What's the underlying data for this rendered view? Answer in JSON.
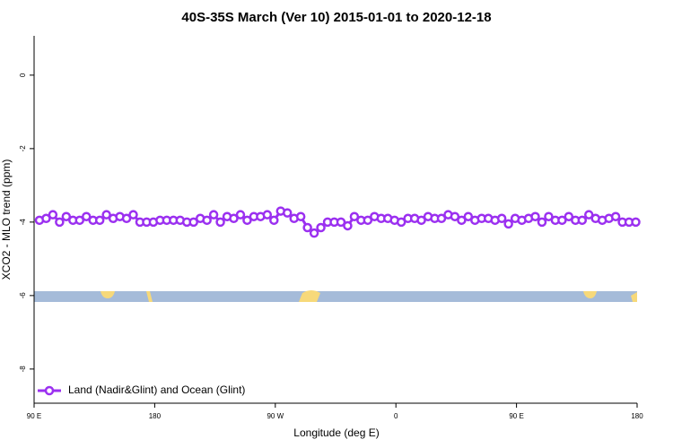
{
  "chart_data": {
    "type": "line",
    "title": "40S-35S March (Ver 10)   2015-01-01 to 2020-12-18",
    "x_label": "Longitude (deg E)",
    "y_label": "XCO2 - MLO trend (ppm)",
    "x": [
      94,
      99,
      104,
      109,
      114,
      119,
      124,
      129,
      134,
      139,
      144,
      149,
      154,
      159,
      164,
      169,
      174,
      179,
      184,
      189,
      194,
      199,
      204,
      209,
      214,
      219,
      224,
      229,
      234,
      239,
      244,
      249,
      254,
      259,
      264,
      269,
      274,
      279,
      284,
      289,
      294,
      299,
      304,
      309,
      314,
      319,
      324,
      329,
      334,
      339,
      344,
      349,
      354,
      359,
      364,
      369,
      374,
      379,
      384,
      389,
      394,
      399,
      404,
      409,
      414,
      419,
      424,
      429,
      434,
      439,
      444,
      449,
      454,
      459,
      464,
      469,
      474,
      479,
      484,
      489,
      494,
      499,
      504,
      509,
      514,
      519,
      524,
      529,
      534,
      539
    ],
    "series": [
      {
        "name": "Land (Nadir&Glint) and Ocean (Glint)",
        "color": "#9b30f0",
        "values": [
          -3.95,
          -3.9,
          -3.8,
          -4,
          -3.85,
          -3.95,
          -3.95,
          -3.85,
          -3.95,
          -3.95,
          -3.8,
          -3.9,
          -3.85,
          -3.9,
          -3.8,
          -4,
          -4,
          -4,
          -3.95,
          -3.95,
          -3.95,
          -3.95,
          -4,
          -4,
          -3.9,
          -3.95,
          -3.8,
          -4,
          -3.85,
          -3.9,
          -3.8,
          -3.95,
          -3.85,
          -3.85,
          -3.8,
          -3.95,
          -3.7,
          -3.75,
          -3.9,
          -3.85,
          -4.15,
          -4.3,
          -4.15,
          -4,
          -4,
          -4,
          -4.1,
          -3.85,
          -3.95,
          -3.95,
          -3.85,
          -3.9,
          -3.9,
          -3.95,
          -4,
          -3.9,
          -3.9,
          -3.95,
          -3.85,
          -3.9,
          -3.9,
          -3.8,
          -3.85,
          -3.95,
          -3.85,
          -3.95,
          -3.9,
          -3.9,
          -3.95,
          -3.9,
          -4.05,
          -3.9,
          -3.95,
          -3.9,
          -3.85,
          -4,
          -3.85,
          -3.95,
          -3.95,
          -3.85,
          -3.95,
          -3.95,
          -3.8,
          -3.9,
          -3.95,
          -3.9,
          -3.85,
          -4,
          -4,
          -4
        ]
      }
    ],
    "xlim": [
      90,
      540
    ],
    "ylim": [
      -8.93,
      1.07
    ],
    "xticks": [
      {
        "value": 90,
        "label": "90 E"
      },
      {
        "value": 180,
        "label": "180"
      },
      {
        "value": 270,
        "label": "90 W"
      },
      {
        "value": 360,
        "label": "0"
      },
      {
        "value": 450,
        "label": "90 E"
      },
      {
        "value": 540,
        "label": "180"
      }
    ],
    "yticks": [
      0,
      -2,
      -4,
      -6,
      -8
    ],
    "legend": "lower left"
  }
}
